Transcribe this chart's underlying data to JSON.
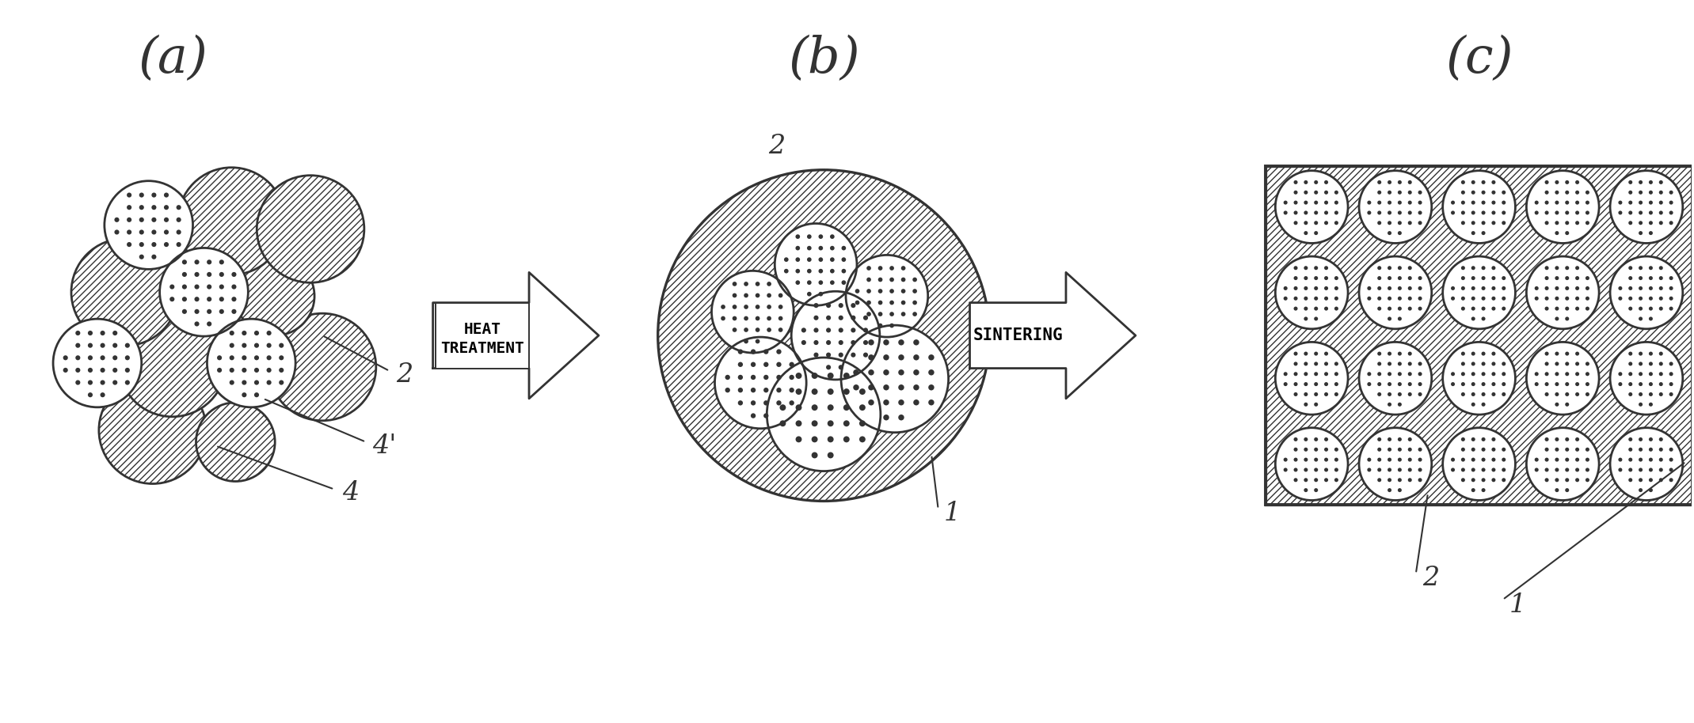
{
  "bg_color": "#ffffff",
  "line_color": "#333333",
  "label_a": "(a)",
  "label_b": "(b)",
  "label_c": "(c)",
  "arrow1_text_line1": "HEAT",
  "arrow1_text_line2": "TREATMENT",
  "arrow2_text": "SINTERING",
  "label_4": "4",
  "label_4prime": "4'",
  "label_2a": "2",
  "label_1b": "1",
  "label_2b": "2",
  "label_2c": "2",
  "label_1c": "1",
  "fig_width": 21.39,
  "fig_height": 9.14
}
